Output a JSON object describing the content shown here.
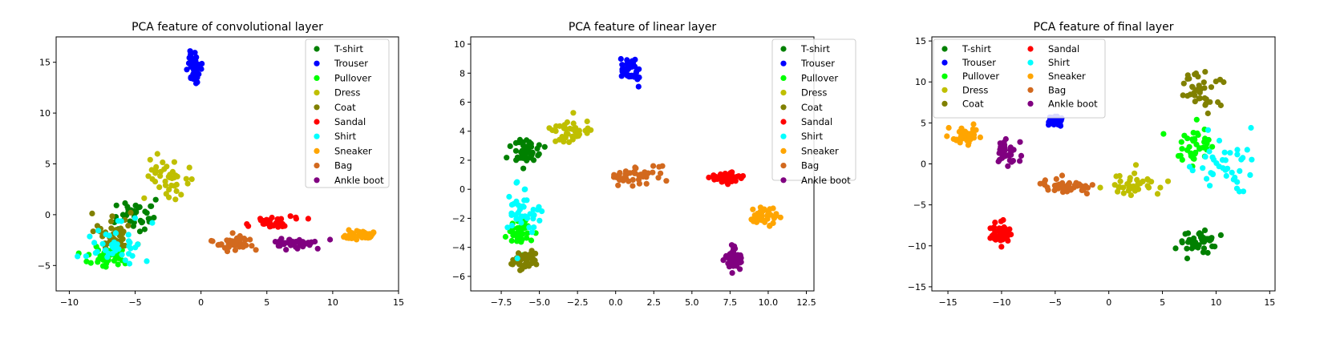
{
  "chart_data": [
    {
      "type": "scatter",
      "title": "PCA feature of convolutional layer",
      "xlabel": "",
      "ylabel": "",
      "xlim": [
        -11.0,
        15.0
      ],
      "ylim": [
        -7.5,
        17.5
      ],
      "xticks": [
        -10,
        -5,
        0,
        5,
        10,
        15
      ],
      "yticks": [
        -5,
        0,
        5,
        10,
        15
      ],
      "legend": {
        "placement": "top-right",
        "columns": 1
      },
      "series": [
        {
          "name": "T-shirt",
          "color": "#008000",
          "center": [
            -5.0,
            0.0
          ],
          "spread": [
            1.6,
            1.3
          ],
          "points": 40
        },
        {
          "name": "Trouser",
          "color": "#0000ff",
          "center": [
            -0.5,
            14.5
          ],
          "spread": [
            0.5,
            1.3
          ],
          "points": 40
        },
        {
          "name": "Pullover",
          "color": "#00ff00",
          "center": [
            -7.2,
            -4.2
          ],
          "spread": [
            1.5,
            0.9
          ],
          "points": 40
        },
        {
          "name": "Dress",
          "color": "#bfbf00",
          "center": [
            -2.5,
            3.5
          ],
          "spread": [
            1.5,
            2.0
          ],
          "points": 40
        },
        {
          "name": "Coat",
          "color": "#808000",
          "center": [
            -6.5,
            -1.8
          ],
          "spread": [
            1.7,
            1.5
          ],
          "points": 40
        },
        {
          "name": "Sandal",
          "color": "#ff0000",
          "center": [
            5.5,
            -0.8
          ],
          "spread": [
            1.6,
            0.5
          ],
          "points": 40
        },
        {
          "name": "Shirt",
          "color": "#00ffff",
          "center": [
            -6.5,
            -2.8
          ],
          "spread": [
            2.2,
            1.8
          ],
          "points": 40
        },
        {
          "name": "Sneaker",
          "color": "#ffa500",
          "center": [
            12.0,
            -2.0
          ],
          "spread": [
            1.1,
            0.4
          ],
          "points": 40
        },
        {
          "name": "Bag",
          "color": "#d2691e",
          "center": [
            2.5,
            -2.8
          ],
          "spread": [
            1.5,
            0.8
          ],
          "points": 40
        },
        {
          "name": "Ankle boot",
          "color": "#800080",
          "center": [
            7.0,
            -2.8
          ],
          "spread": [
            1.8,
            0.5
          ],
          "points": 40
        }
      ]
    },
    {
      "type": "scatter",
      "title": "PCA feature of linear layer",
      "xlabel": "",
      "ylabel": "",
      "xlim": [
        -9.5,
        13.0
      ],
      "ylim": [
        -7.0,
        10.5
      ],
      "xticks": [
        -7.5,
        -5.0,
        -2.5,
        0.0,
        2.5,
        5.0,
        7.5,
        10.0,
        12.5
      ],
      "xtick_labels": [
        "−7.5",
        "−5.0",
        "−2.5",
        "0.0",
        "2.5",
        "5.0",
        "7.5",
        "10.0",
        "12.5"
      ],
      "yticks": [
        -6,
        -4,
        -2,
        0,
        2,
        4,
        6,
        8,
        10
      ],
      "legend": {
        "placement": "top-right",
        "columns": 1
      },
      "series": [
        {
          "name": "T-shirt",
          "color": "#008000",
          "center": [
            -5.8,
            2.5
          ],
          "spread": [
            0.8,
            0.8
          ],
          "points": 40
        },
        {
          "name": "Trouser",
          "color": "#0000ff",
          "center": [
            1.0,
            8.3
          ],
          "spread": [
            0.5,
            0.8
          ],
          "points": 40
        },
        {
          "name": "Pullover",
          "color": "#00ff00",
          "center": [
            -6.2,
            -3.0
          ],
          "spread": [
            0.8,
            0.9
          ],
          "points": 40
        },
        {
          "name": "Dress",
          "color": "#bfbf00",
          "center": [
            -3.0,
            4.0
          ],
          "spread": [
            1.2,
            0.8
          ],
          "points": 40
        },
        {
          "name": "Coat",
          "color": "#808000",
          "center": [
            -6.0,
            -5.0
          ],
          "spread": [
            0.7,
            0.6
          ],
          "points": 40
        },
        {
          "name": "Sandal",
          "color": "#ff0000",
          "center": [
            7.0,
            0.8
          ],
          "spread": [
            1.0,
            0.4
          ],
          "points": 40
        },
        {
          "name": "Shirt",
          "color": "#00ffff",
          "center": [
            -6.0,
            -1.5
          ],
          "spread": [
            1.3,
            2.0
          ],
          "points": 40
        },
        {
          "name": "Sneaker",
          "color": "#ffa500",
          "center": [
            9.8,
            -2.0
          ],
          "spread": [
            0.8,
            0.6
          ],
          "points": 40
        },
        {
          "name": "Bag",
          "color": "#d2691e",
          "center": [
            1.5,
            1.0
          ],
          "spread": [
            1.6,
            0.6
          ],
          "points": 40
        },
        {
          "name": "Ankle boot",
          "color": "#800080",
          "center": [
            7.8,
            -4.8
          ],
          "spread": [
            0.6,
            0.8
          ],
          "points": 40
        }
      ]
    },
    {
      "type": "scatter",
      "title": "PCA feature of final layer",
      "xlabel": "",
      "ylabel": "",
      "xlim": [
        -16.5,
        15.5
      ],
      "ylim": [
        -15.5,
        15.5
      ],
      "xticks": [
        -15,
        -10,
        -5,
        0,
        5,
        10,
        15
      ],
      "yticks": [
        -15,
        -10,
        -5,
        0,
        5,
        10,
        15
      ],
      "legend": {
        "placement": "top-left",
        "columns": 2
      },
      "series": [
        {
          "name": "T-shirt",
          "color": "#008000",
          "center": [
            8.5,
            -9.5
          ],
          "spread": [
            1.8,
            1.4
          ],
          "points": 40
        },
        {
          "name": "Trouser",
          "color": "#0000ff",
          "center": [
            -5.0,
            5.2
          ],
          "spread": [
            0.6,
            0.6
          ],
          "points": 40
        },
        {
          "name": "Pullover",
          "color": "#00ff00",
          "center": [
            8.0,
            2.5
          ],
          "spread": [
            1.8,
            2.0
          ],
          "points": 40
        },
        {
          "name": "Dress",
          "color": "#bfbf00",
          "center": [
            2.5,
            -2.5
          ],
          "spread": [
            2.5,
            1.2
          ],
          "points": 40
        },
        {
          "name": "Coat",
          "color": "#808000",
          "center": [
            8.5,
            9.0
          ],
          "spread": [
            1.8,
            2.2
          ],
          "points": 40
        },
        {
          "name": "Sandal",
          "color": "#ff0000",
          "center": [
            -10.0,
            -8.5
          ],
          "spread": [
            0.9,
            1.5
          ],
          "points": 40
        },
        {
          "name": "Shirt",
          "color": "#00ffff",
          "center": [
            11.0,
            0.0
          ],
          "spread": [
            2.5,
            3.0
          ],
          "points": 40
        },
        {
          "name": "Sneaker",
          "color": "#ffa500",
          "center": [
            -13.5,
            3.5
          ],
          "spread": [
            1.3,
            1.0
          ],
          "points": 40
        },
        {
          "name": "Bag",
          "color": "#d2691e",
          "center": [
            -4.0,
            -2.8
          ],
          "spread": [
            2.0,
            0.9
          ],
          "points": 40
        },
        {
          "name": "Ankle boot",
          "color": "#800080",
          "center": [
            -9.5,
            1.5
          ],
          "spread": [
            1.0,
            1.5
          ],
          "points": 40
        }
      ]
    }
  ]
}
